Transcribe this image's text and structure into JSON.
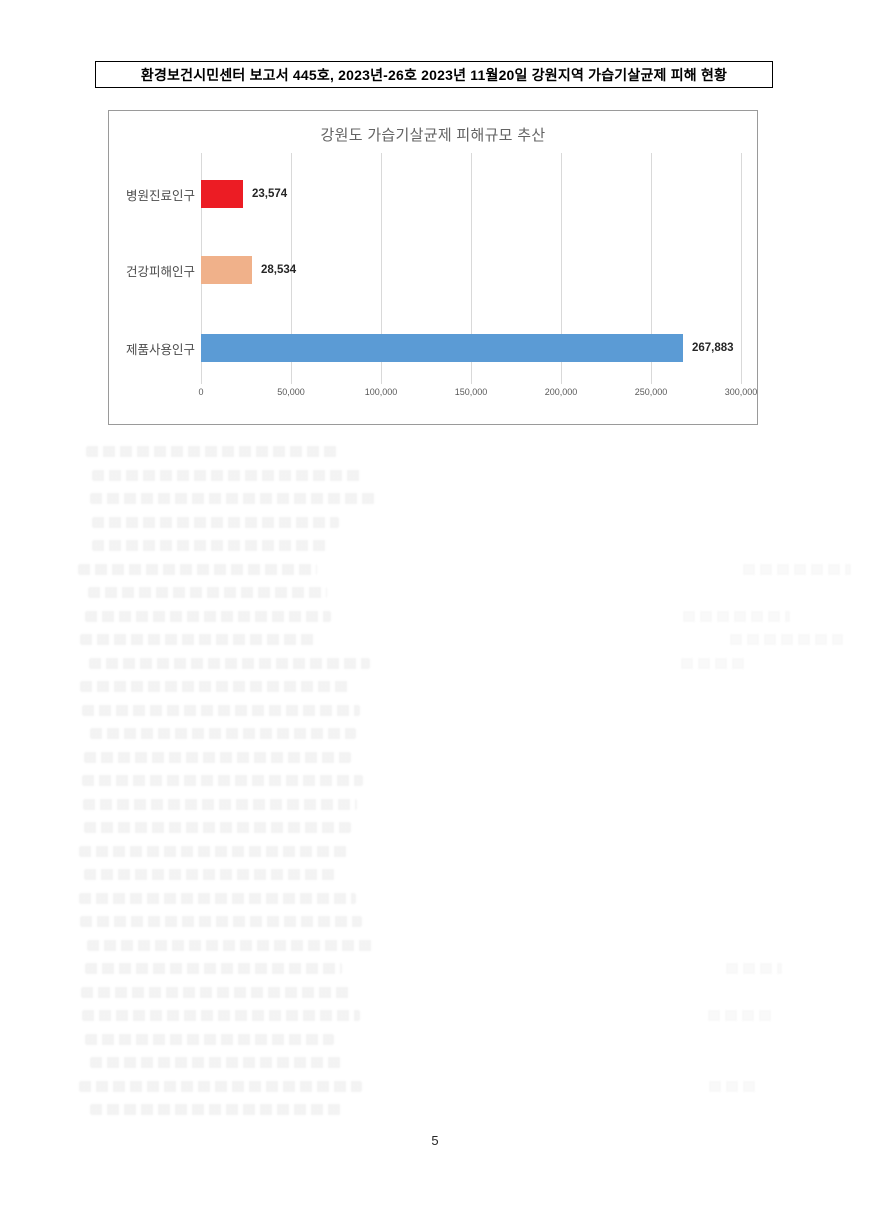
{
  "header": {
    "title": "환경보건시민센터 보고서 445호, 2023년-26호 2023년 11월20일 강원지역 가습기살균제 피해 현황"
  },
  "chart_data": {
    "type": "bar",
    "orientation": "horizontal",
    "title": "강원도 가습기살균제 피해규모 추산",
    "categories": [
      "병원진료인구",
      "건강피해인구",
      "제품사용인구"
    ],
    "values": [
      23574,
      28534,
      267883
    ],
    "value_labels": [
      "23,574",
      "28,534",
      "267,883"
    ],
    "bar_colors": [
      "#ec1c24",
      "#f0b18a",
      "#5b9bd5"
    ],
    "xlim": [
      0,
      300000
    ],
    "x_ticks": [
      "0",
      "50,000",
      "100,000",
      "150,000",
      "200,000",
      "250,000",
      "300,000"
    ],
    "grid": "vertical-gridlines-on",
    "legend": "none",
    "title_color": "#636363",
    "gridline_color": "#d9d9d9"
  },
  "page": {
    "number": "5"
  }
}
